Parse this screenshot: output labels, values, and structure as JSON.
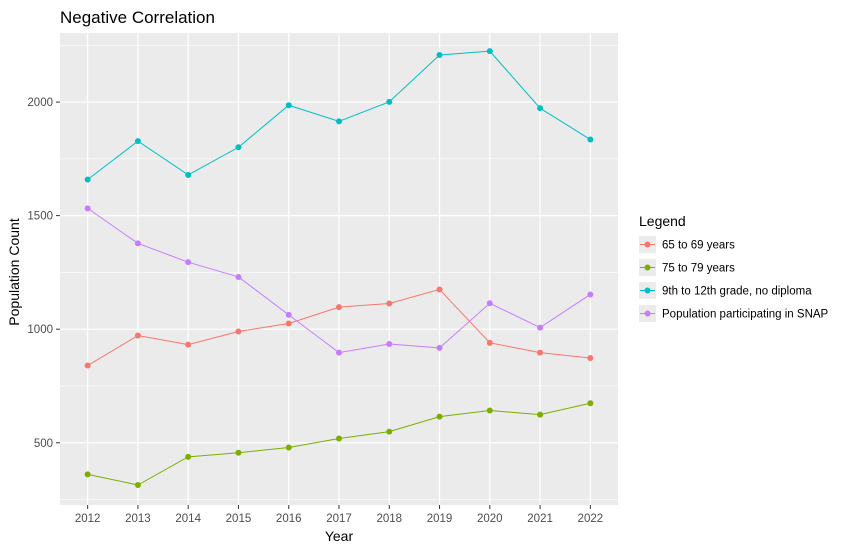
{
  "chart_data": {
    "type": "line",
    "title": "Negative Correlation",
    "xlabel": "Year",
    "ylabel": "Population Count",
    "x": [
      2012,
      2013,
      2014,
      2015,
      2016,
      2017,
      2018,
      2019,
      2020,
      2021,
      2022
    ],
    "x_tick_labels": [
      "2012",
      "2013",
      "2014",
      "2015",
      "2016",
      "2017",
      "2018",
      "2019",
      "2020",
      "2021",
      "2022"
    ],
    "y_ticks": [
      500,
      1000,
      1500,
      2000
    ],
    "y_tick_labels": [
      "500",
      "1000",
      "1500",
      "2000"
    ],
    "xlim": [
      2011.45,
      2022.55
    ],
    "ylim": [
      226,
      2304
    ],
    "grid": true,
    "panel_background": "#EBEBEB",
    "legend": {
      "title": "Legend",
      "position": "right"
    },
    "series": [
      {
        "name": "65 to 69 years",
        "color": "#F8766D",
        "values": [
          840,
          972,
          932,
          990,
          1025,
          1097,
          1113,
          1175,
          940,
          897,
          873
        ]
      },
      {
        "name": "75 to 79 years",
        "color": "#7CAE00",
        "values": [
          361,
          314,
          438,
          456,
          479,
          519,
          549,
          615,
          642,
          624,
          674
        ]
      },
      {
        "name": "9th to 12th grade, no diploma",
        "color": "#00BFC4",
        "values": [
          1659,
          1828,
          1679,
          1801,
          1986,
          1915,
          2001,
          2207,
          2224,
          1973,
          1835
        ]
      },
      {
        "name": "Population participating in SNAP",
        "color": "#C77CFF",
        "values": [
          1532,
          1378,
          1295,
          1230,
          1063,
          897,
          935,
          918,
          1114,
          1007,
          1153
        ]
      }
    ]
  }
}
